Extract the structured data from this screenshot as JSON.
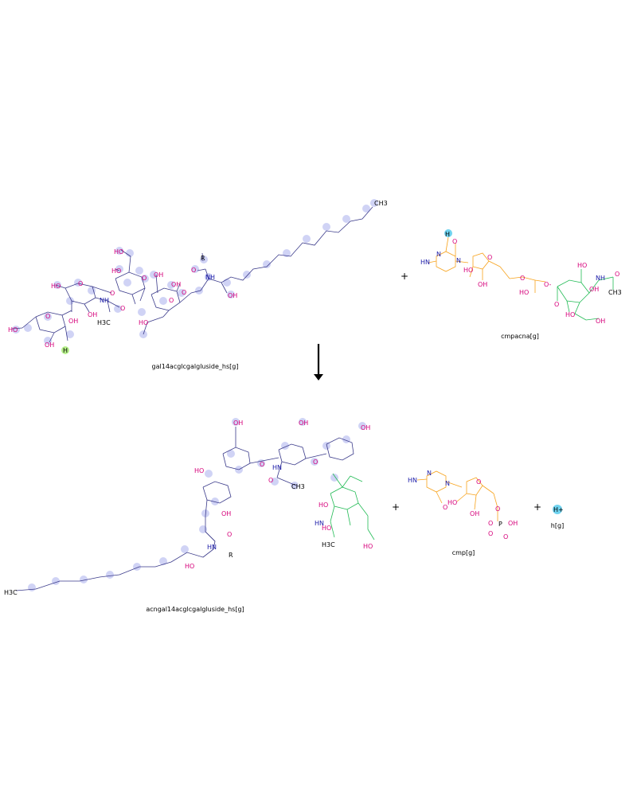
{
  "reactants": [
    {
      "name": "gal14acglcgalgluside_hs[g]"
    },
    {
      "name": "cmpacna[g]"
    }
  ],
  "products": [
    {
      "name": "acngal14acglcgalgluside_hs[g]"
    },
    {
      "name": "cmp[g]"
    },
    {
      "name": "h[g]"
    }
  ],
  "plus_sign": "+",
  "atom_labels": {
    "oh": "OH",
    "ho": "HO",
    "o": "O",
    "nh": "NH",
    "hn": "HN",
    "n": "N",
    "h": "H",
    "r": "R",
    "ch3": "CH3",
    "h3c": "H3C",
    "p": "P",
    "o_minus": "O-",
    "h_plus": "H+"
  },
  "colors": {
    "reactant1": "#c8ccf4",
    "cmp_group": "#f7a21b",
    "acna_group": "#22bb55",
    "hydrogen": "#6fd3f0",
    "h_highlight": "#b6f08a",
    "oxygen": "#d6007a",
    "nitrogen": "#1a1aa8"
  }
}
